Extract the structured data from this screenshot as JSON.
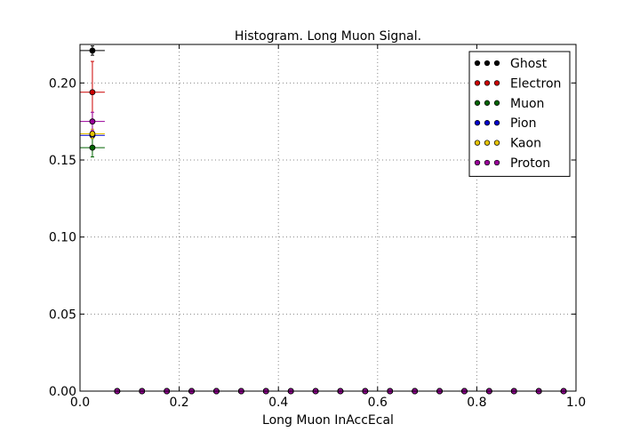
{
  "chart_data": {
    "type": "scatter",
    "title": "Histogram. Long Muon Signal.",
    "xlabel": "Long Muon InAccEcal",
    "ylabel": "",
    "xlim": [
      0.0,
      1.0
    ],
    "ylim": [
      0.0,
      0.225
    ],
    "x_ticks": [
      "0.0",
      "0.2",
      "0.4",
      "0.6",
      "0.8",
      "1.0"
    ],
    "y_ticks": [
      "0.00",
      "0.05",
      "0.10",
      "0.15",
      "0.20"
    ],
    "grid": true,
    "legend_position": "top-right",
    "bin_centers": [
      0.025,
      0.075,
      0.125,
      0.175,
      0.225,
      0.275,
      0.325,
      0.375,
      0.425,
      0.475,
      0.525,
      0.575,
      0.625,
      0.675,
      0.725,
      0.775,
      0.825,
      0.875,
      0.925,
      0.975
    ],
    "x_error": 0.025,
    "series": [
      {
        "name": "Ghost",
        "color": "#000000",
        "values": [
          0.221,
          0,
          0,
          0,
          0,
          0,
          0,
          0,
          0,
          0,
          0,
          0,
          0,
          0,
          0,
          0,
          0,
          0,
          0,
          0
        ],
        "y_error": [
          0.003,
          0,
          0,
          0,
          0,
          0,
          0,
          0,
          0,
          0,
          0,
          0,
          0,
          0,
          0,
          0,
          0,
          0,
          0,
          0
        ]
      },
      {
        "name": "Electron",
        "color": "#cc0000",
        "values": [
          0.194,
          0,
          0,
          0,
          0,
          0,
          0,
          0,
          0,
          0,
          0,
          0,
          0,
          0,
          0,
          0,
          0,
          0,
          0,
          0
        ],
        "y_error": [
          0.02,
          0,
          0,
          0,
          0,
          0,
          0,
          0,
          0,
          0,
          0,
          0,
          0,
          0,
          0,
          0,
          0,
          0,
          0,
          0
        ]
      },
      {
        "name": "Muon",
        "color": "#006400",
        "values": [
          0.158,
          0,
          0,
          0,
          0,
          0,
          0,
          0,
          0,
          0,
          0,
          0,
          0,
          0,
          0,
          0,
          0,
          0,
          0,
          0
        ],
        "y_error": [
          0.006,
          0,
          0,
          0,
          0,
          0,
          0,
          0,
          0,
          0,
          0,
          0,
          0,
          0,
          0,
          0,
          0,
          0,
          0,
          0
        ]
      },
      {
        "name": "Pion",
        "color": "#0000cc",
        "values": [
          0.166,
          0,
          0,
          0,
          0,
          0,
          0,
          0,
          0,
          0,
          0,
          0,
          0,
          0,
          0,
          0,
          0,
          0,
          0,
          0
        ],
        "y_error": [
          0.001,
          0,
          0,
          0,
          0,
          0,
          0,
          0,
          0,
          0,
          0,
          0,
          0,
          0,
          0,
          0,
          0,
          0,
          0,
          0
        ]
      },
      {
        "name": "Kaon",
        "color": "#e6c300",
        "values": [
          0.167,
          0,
          0,
          0,
          0,
          0,
          0,
          0,
          0,
          0,
          0,
          0,
          0,
          0,
          0,
          0,
          0,
          0,
          0,
          0
        ],
        "y_error": [
          0.003,
          0,
          0,
          0,
          0,
          0,
          0,
          0,
          0,
          0,
          0,
          0,
          0,
          0,
          0,
          0,
          0,
          0,
          0,
          0
        ]
      },
      {
        "name": "Proton",
        "color": "#990099",
        "values": [
          0.175,
          0,
          0,
          0,
          0,
          0,
          0,
          0,
          0,
          0,
          0,
          0,
          0,
          0,
          0,
          0,
          0,
          0,
          0,
          0
        ],
        "y_error": [
          0.006,
          0,
          0,
          0,
          0,
          0,
          0,
          0,
          0,
          0,
          0,
          0,
          0,
          0,
          0,
          0,
          0,
          0,
          0,
          0
        ]
      }
    ]
  }
}
